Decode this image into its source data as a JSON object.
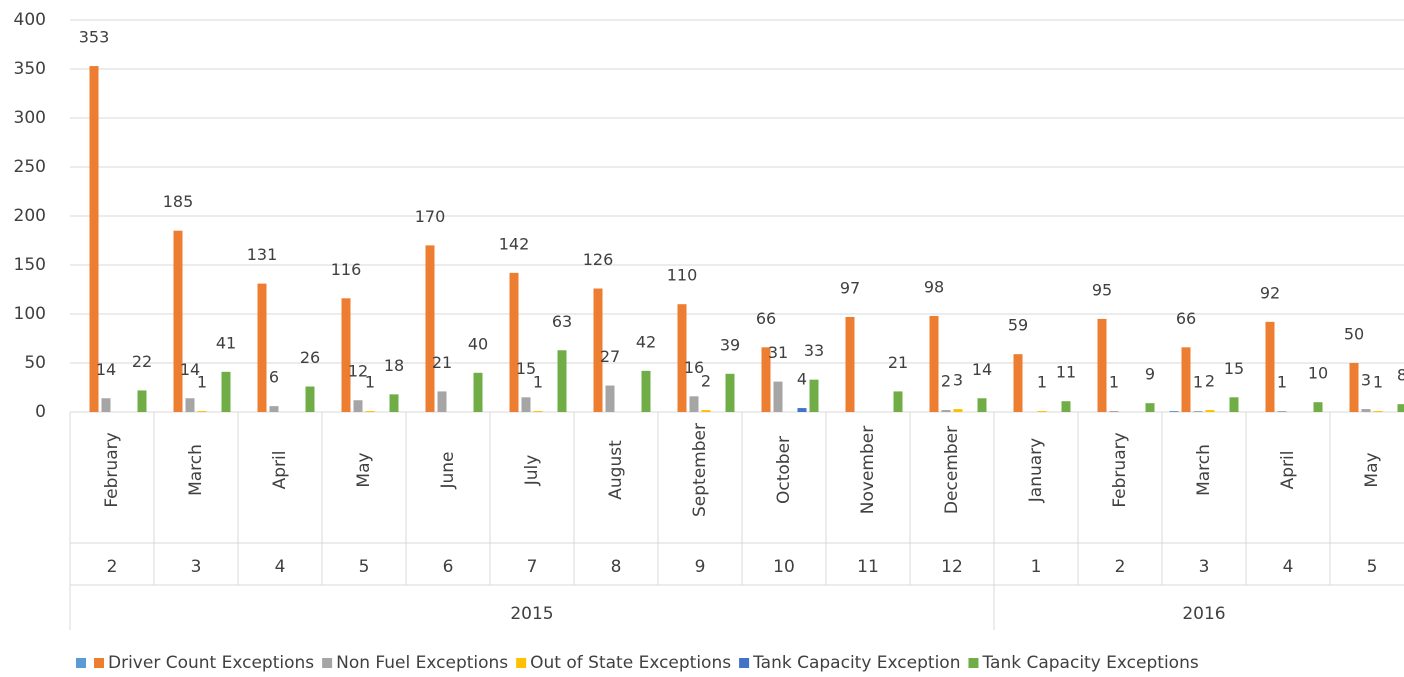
{
  "chart_data": {
    "type": "bar",
    "categories": [
      "February",
      "March",
      "April",
      "May",
      "June",
      "July",
      "August",
      "September",
      "October",
      "November",
      "December",
      "January",
      "February",
      "March",
      "April",
      "May"
    ],
    "category_numbers": [
      2,
      3,
      4,
      5,
      6,
      7,
      8,
      9,
      10,
      11,
      12,
      1,
      2,
      3,
      4,
      5
    ],
    "year_groups": [
      {
        "label": "2015",
        "count": 11
      },
      {
        "label": "2016",
        "count": 5
      }
    ],
    "series": [
      {
        "color": "#5b9bd5",
        "data_labels": false,
        "values": [
          null,
          null,
          null,
          null,
          null,
          null,
          null,
          null,
          null,
          null,
          null,
          null,
          null,
          1,
          null,
          null
        ]
      },
      {
        "name": "Driver Count Exceptions",
        "color": "#ed7d31",
        "values": [
          353,
          185,
          131,
          116,
          170,
          142,
          126,
          110,
          66,
          97,
          98,
          59,
          95,
          66,
          92,
          50
        ]
      },
      {
        "name": "Non Fuel Exceptions",
        "color": "#a5a5a5",
        "values": [
          14,
          14,
          6,
          12,
          21,
          15,
          27,
          16,
          31,
          null,
          2,
          null,
          1,
          1,
          1,
          3
        ]
      },
      {
        "name": "Out of State Exceptions",
        "color": "#ffc000",
        "values": [
          null,
          1,
          null,
          1,
          null,
          1,
          null,
          2,
          null,
          null,
          3,
          1,
          null,
          2,
          null,
          1
        ]
      },
      {
        "name": "Tank Capacity Exception",
        "color": "#4472c4",
        "values": [
          null,
          null,
          null,
          null,
          null,
          null,
          null,
          null,
          4,
          null,
          null,
          null,
          null,
          null,
          null,
          null
        ]
      },
      {
        "name": "Tank Capacity Exceptions",
        "color": "#70ad47",
        "values": [
          22,
          41,
          26,
          18,
          40,
          63,
          42,
          39,
          33,
          21,
          14,
          11,
          9,
          15,
          10,
          8
        ]
      }
    ],
    "ylim": [
      0,
      400
    ],
    "yticks": [
      0,
      50,
      100,
      150,
      200,
      250,
      300,
      350,
      400
    ],
    "grid": true,
    "legend": "bottom"
  }
}
